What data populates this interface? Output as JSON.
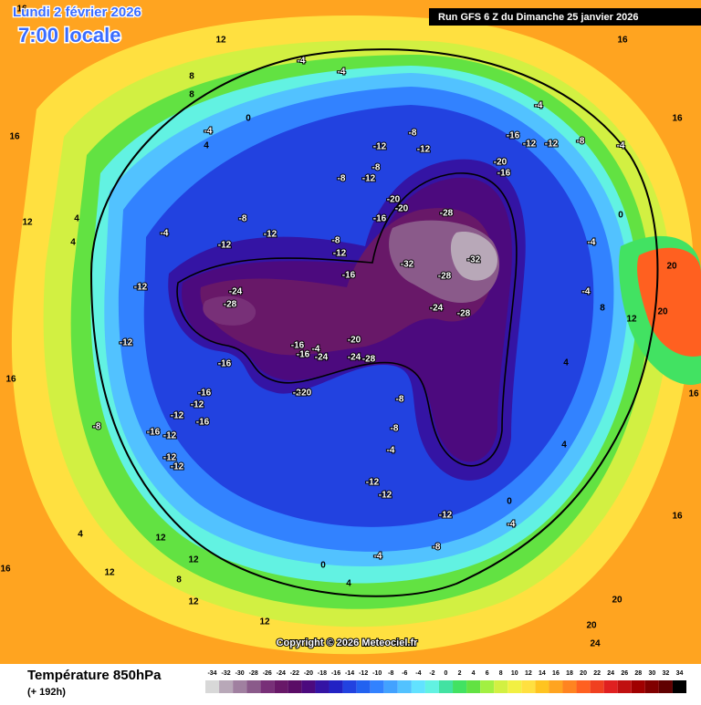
{
  "header": {
    "date": "Lundi 2 février 2026",
    "time": "7:00 locale",
    "run": "Run GFS 6 Z du Dimanche 25 janvier 2026"
  },
  "map": {
    "labels": [
      -32,
      -32,
      -28,
      -28,
      -28,
      -24,
      -24,
      -28,
      -20,
      -24,
      -28,
      -16,
      -16,
      -16,
      -20,
      -20,
      -20,
      -16,
      -16,
      -12,
      -12,
      -12,
      -12,
      -8,
      -8,
      -12,
      -8,
      -12,
      -8,
      -12,
      -12,
      -12,
      -16,
      -16,
      -12,
      -16,
      -12,
      -16,
      -12,
      -12,
      -12,
      -8,
      -20,
      -8,
      -8,
      -4,
      -12,
      -12,
      -12,
      -8,
      -4,
      0,
      4,
      -4,
      -4,
      -4,
      0,
      8,
      12,
      16,
      16,
      12,
      16,
      12,
      12,
      8,
      16,
      12,
      20,
      24,
      20,
      20,
      16,
      16,
      20,
      16,
      16,
      -4,
      -8,
      -4,
      0,
      -4,
      -4,
      12,
      8,
      4,
      4,
      0,
      -4,
      -16,
      -4,
      -24,
      -20,
      4,
      4,
      8,
      4,
      -4,
      -12,
      -8,
      4,
      12,
      12
    ]
  },
  "copyright": "Copyright © 2026 Meteociel.fr",
  "legend": {
    "title": "Température 850hPa",
    "subtitle": "(+ 192h)",
    "scale": [
      {
        "value": -34,
        "color": "#d8d8d8"
      },
      {
        "value": -32,
        "color": "#b8a8b8"
      },
      {
        "value": -30,
        "color": "#a080a0"
      },
      {
        "value": -28,
        "color": "#8a5a8a"
      },
      {
        "value": -26,
        "color": "#783078"
      },
      {
        "value": -24,
        "color": "#681868"
      },
      {
        "value": -22,
        "color": "#5a0c66"
      },
      {
        "value": -20,
        "color": "#4c0a7e"
      },
      {
        "value": -18,
        "color": "#3414a4"
      },
      {
        "value": -16,
        "color": "#2222c4"
      },
      {
        "value": -14,
        "color": "#2242e0"
      },
      {
        "value": -12,
        "color": "#2262f0"
      },
      {
        "value": -10,
        "color": "#3282ff"
      },
      {
        "value": -8,
        "color": "#42a2ff"
      },
      {
        "value": -6,
        "color": "#52c2ff"
      },
      {
        "value": -4,
        "color": "#62e2ff"
      },
      {
        "value": -2,
        "color": "#62f2e2"
      },
      {
        "value": 0,
        "color": "#42e2a2"
      },
      {
        "value": 2,
        "color": "#42e262"
      },
      {
        "value": 4,
        "color": "#62e242"
      },
      {
        "value": 6,
        "color": "#a2f042"
      },
      {
        "value": 8,
        "color": "#d2f042"
      },
      {
        "value": 10,
        "color": "#f2f042"
      },
      {
        "value": 12,
        "color": "#ffe040"
      },
      {
        "value": 14,
        "color": "#ffc420"
      },
      {
        "value": 16,
        "color": "#ffa420"
      },
      {
        "value": 18,
        "color": "#ff8420"
      },
      {
        "value": 20,
        "color": "#ff6020"
      },
      {
        "value": 22,
        "color": "#f04020"
      },
      {
        "value": 24,
        "color": "#e02020"
      },
      {
        "value": 26,
        "color": "#c01010"
      },
      {
        "value": 28,
        "color": "#a00000"
      },
      {
        "value": 30,
        "color": "#800000"
      },
      {
        "value": 32,
        "color": "#600000"
      },
      {
        "value": 34,
        "color": "#000000"
      }
    ]
  }
}
